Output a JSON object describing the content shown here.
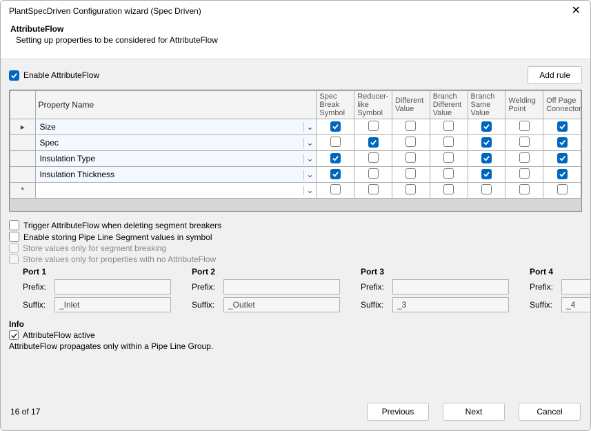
{
  "window": {
    "title": "PlantSpecDriven Configuration wizard (Spec Driven)"
  },
  "header": {
    "title": "AttributeFlow",
    "subtitle": "Setting up properties to be considered for AttributeFlow"
  },
  "toolbar": {
    "enable_label": "Enable AttributeFlow",
    "enable_checked": true,
    "add_rule_label": "Add rule"
  },
  "table": {
    "columns": {
      "property_name": "Property Name",
      "spec_break": "Spec Break Symbol",
      "reducer_like": "Reducer-like Symbol",
      "different_value": "Different Value",
      "branch_diff": "Branch Different Value",
      "branch_same": "Branch Same Value",
      "welding_point": "Welding Point",
      "off_page": "Off Page Connector"
    },
    "rows": [
      {
        "indicator": "▸",
        "name": "Size",
        "flags": [
          true,
          false,
          false,
          false,
          true,
          false,
          true
        ]
      },
      {
        "indicator": "",
        "name": "Spec",
        "flags": [
          false,
          true,
          false,
          false,
          true,
          false,
          true
        ]
      },
      {
        "indicator": "",
        "name": "Insulation Type",
        "flags": [
          true,
          false,
          false,
          false,
          true,
          false,
          true
        ]
      },
      {
        "indicator": "",
        "name": "Insulation Thickness",
        "flags": [
          true,
          false,
          false,
          false,
          true,
          false,
          true
        ]
      },
      {
        "indicator": "*",
        "name": "",
        "flags": [
          false,
          false,
          false,
          false,
          false,
          false,
          false
        ],
        "plain": true
      }
    ]
  },
  "options": {
    "trigger_delete": {
      "label": "Trigger AttributeFlow when deleting segment breakers",
      "checked": false
    },
    "enable_store": {
      "label": "Enable storing Pipe Line Segment values in symbol",
      "checked": false
    },
    "store_segment": {
      "label": "Store values only for segment breaking",
      "checked": false,
      "disabled": true
    },
    "store_noflow": {
      "label": "Store values only for properties with no AttributeFlow",
      "checked": false,
      "disabled": true
    }
  },
  "ports": [
    {
      "title": "Port 1",
      "prefix": "",
      "suffix": "_Inlet"
    },
    {
      "title": "Port 2",
      "prefix": "",
      "suffix": "_Outlet"
    },
    {
      "title": "Port 3",
      "prefix": "",
      "suffix": "_3"
    },
    {
      "title": "Port 4",
      "prefix": "",
      "suffix": "_4"
    }
  ],
  "field_labels": {
    "prefix": "Prefix:",
    "suffix": "Suffix:"
  },
  "info": {
    "heading": "Info",
    "active_label": "AttributeFlow active",
    "active_checked": true,
    "note": "AttributeFlow propagates only within a Pipe Line Group."
  },
  "footer": {
    "page": "16 of 17",
    "previous": "Previous",
    "next": "Next",
    "cancel": "Cancel"
  },
  "style": {
    "accent": "#0067c0",
    "content_bg": "#f0f0f0",
    "border": "#adadad",
    "combo_bg": "#f4f9ff"
  }
}
